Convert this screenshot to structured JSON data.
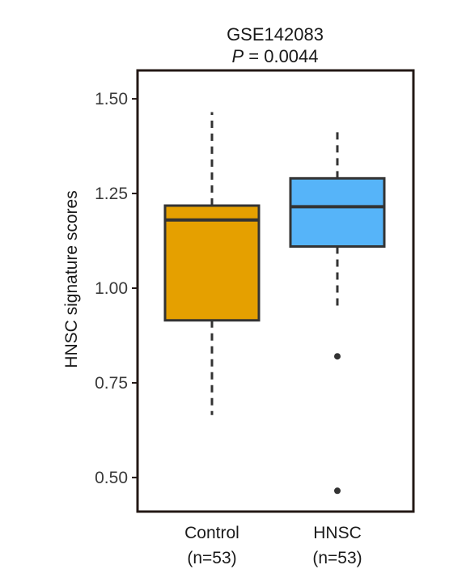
{
  "chart_data": {
    "type": "box",
    "title": "GSE142083",
    "subtitle_prefix": "P",
    "subtitle_rest": " = 0.0044",
    "ylabel": "HNSC signature scores",
    "xlabel": "",
    "ylim": [
      0.41,
      1.575
    ],
    "yticks": [
      "0.50",
      "0.75",
      "1.00",
      "1.25",
      "1.50"
    ],
    "ytick_values": [
      0.5,
      0.75,
      1.0,
      1.25,
      1.5
    ],
    "grid": false,
    "groups": [
      {
        "name": "Control",
        "n_label": "(n=53)",
        "color": "#E5A000",
        "whisker_low": 0.665,
        "q1": 0.915,
        "median": 1.18,
        "q3": 1.218,
        "whisker_high": 1.465,
        "outliers": []
      },
      {
        "name": "HNSC",
        "n_label": "(n=53)",
        "color": "#56B4F9",
        "whisker_low": 0.94,
        "q1": 1.11,
        "median": 1.215,
        "q3": 1.29,
        "whisker_high": 1.425,
        "outliers": [
          0.82,
          0.465
        ]
      }
    ]
  }
}
